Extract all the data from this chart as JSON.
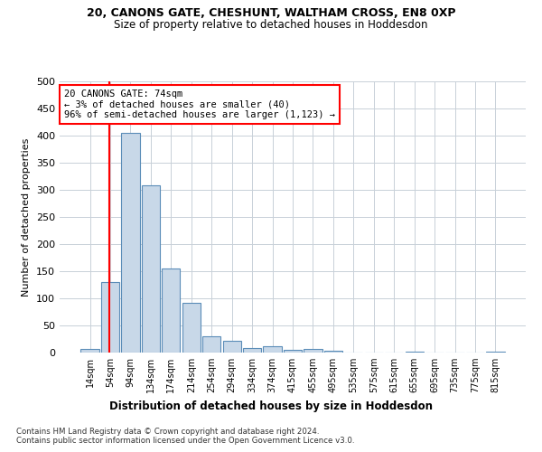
{
  "title1": "20, CANONS GATE, CHESHUNT, WALTHAM CROSS, EN8 0XP",
  "title2": "Size of property relative to detached houses in Hoddesdon",
  "xlabel": "Distribution of detached houses by size in Hoddesdon",
  "ylabel": "Number of detached properties",
  "bar_color": "#c8d8e8",
  "bar_edge_color": "#5b8db8",
  "categories": [
    "14sqm",
    "54sqm",
    "94sqm",
    "134sqm",
    "174sqm",
    "214sqm",
    "254sqm",
    "294sqm",
    "334sqm",
    "374sqm",
    "415sqm",
    "455sqm",
    "495sqm",
    "535sqm",
    "575sqm",
    "615sqm",
    "655sqm",
    "695sqm",
    "735sqm",
    "775sqm",
    "815sqm"
  ],
  "values": [
    6,
    130,
    405,
    308,
    155,
    92,
    30,
    21,
    8,
    12,
    5,
    6,
    4,
    0,
    0,
    0,
    2,
    0,
    0,
    0,
    2
  ],
  "ylim": [
    0,
    500
  ],
  "yticks": [
    0,
    50,
    100,
    150,
    200,
    250,
    300,
    350,
    400,
    450,
    500
  ],
  "property_line_bin": 1,
  "annotation_text": "20 CANONS GATE: 74sqm\n← 3% of detached houses are smaller (40)\n96% of semi-detached houses are larger (1,123) →",
  "footer1": "Contains HM Land Registry data © Crown copyright and database right 2024.",
  "footer2": "Contains public sector information licensed under the Open Government Licence v3.0.",
  "bg_color": "#ffffff",
  "plot_bg_color": "#ffffff",
  "grid_color": "#c8d0d8"
}
